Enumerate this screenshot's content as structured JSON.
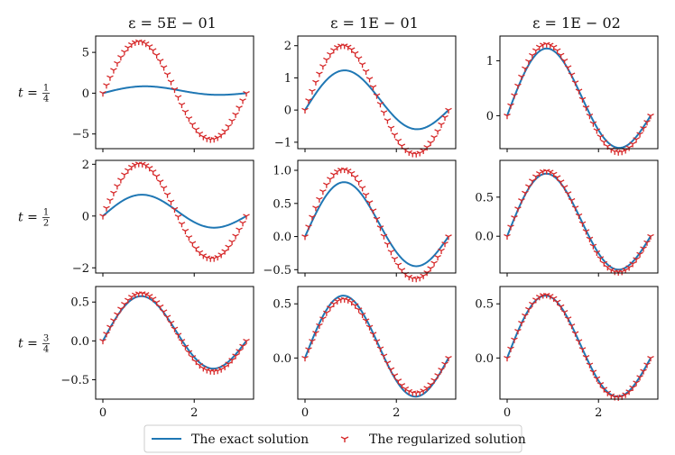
{
  "colors": {
    "exact": "#1f77b4",
    "regularized": "#d62728",
    "axes": "#000000"
  },
  "chart_data": {
    "type": "line",
    "layout": "3x3 grid of subplots",
    "x_domain": [
      0,
      3.14159
    ],
    "x_ticks": [
      0,
      2
    ],
    "column_titles": [
      "ε = 5E − 01",
      "ε = 1E − 01",
      "ε = 1E − 02"
    ],
    "row_labels": [
      "t = 1/4",
      "t = 1/2",
      "t = 3/4"
    ],
    "series_def": {
      "exact": "A·sin(x) + B·sin(2x)",
      "regularized": "A·sin(x) + C·sin(2x), markers at 41 points on [0, π]"
    },
    "legend": {
      "location": "bottom-center",
      "entries": [
        "The exact solution",
        "The regularized solution"
      ]
    },
    "subplots": [
      {
        "row": 0,
        "col": 0,
        "A": 0.453,
        "B": 0.5,
        "C": 6.0,
        "ylim": [
          -6.8,
          7.0
        ],
        "yticks": [
          -5,
          0,
          5
        ],
        "ytick_labels": [
          "−5",
          "0",
          "5"
        ]
      },
      {
        "row": 0,
        "col": 1,
        "A": 0.453,
        "B": 0.9,
        "C": 1.68,
        "ylim": [
          -1.2,
          2.3
        ],
        "yticks": [
          -1,
          0,
          1,
          2
        ],
        "ytick_labels": [
          "−1",
          "0",
          "1",
          "2"
        ]
      },
      {
        "row": 0,
        "col": 2,
        "A": 0.453,
        "B": 0.89,
        "C": 0.97,
        "ylim": [
          -0.6,
          1.45
        ],
        "yticks": [
          0,
          1
        ],
        "ytick_labels": [
          "0",
          "1"
        ]
      },
      {
        "row": 1,
        "col": 0,
        "A": 0.265,
        "B": 0.63,
        "C": 1.83,
        "ylim": [
          -2.2,
          2.15
        ],
        "yticks": [
          -2,
          0,
          2
        ],
        "ytick_labels": [
          "−2",
          "0",
          "2"
        ]
      },
      {
        "row": 1,
        "col": 1,
        "A": 0.265,
        "B": 0.627,
        "C": 0.82,
        "ylim": [
          -0.55,
          1.15
        ],
        "yticks": [
          -0.5,
          0,
          0.5,
          1.0
        ],
        "ytick_labels": [
          "−0.5",
          "0.0",
          "0.5",
          "1.0"
        ]
      },
      {
        "row": 1,
        "col": 2,
        "A": 0.265,
        "B": 0.606,
        "C": 0.64,
        "ylim": [
          -0.47,
          0.97
        ],
        "yticks": [
          0,
          0.5
        ],
        "ytick_labels": [
          "0.0",
          "0.5"
        ]
      },
      {
        "row": 2,
        "col": 0,
        "A": 0.155,
        "B": 0.463,
        "C": 0.5,
        "ylim": [
          -0.75,
          0.7
        ],
        "yticks": [
          -0.5,
          0,
          0.5
        ],
        "ytick_labels": [
          "−0.5",
          "0.0",
          "0.5"
        ]
      },
      {
        "row": 2,
        "col": 1,
        "A": 0.155,
        "B": 0.463,
        "C": 0.43,
        "ylim": [
          -0.38,
          0.66
        ],
        "yticks": [
          0,
          0.5
        ],
        "ytick_labels": [
          "0.0",
          "0.5"
        ]
      },
      {
        "row": 2,
        "col": 2,
        "A": 0.155,
        "B": 0.463,
        "C": 0.47,
        "ylim": [
          -0.38,
          0.66
        ],
        "yticks": [
          0,
          0.5
        ],
        "ytick_labels": [
          "0.0",
          "0.5"
        ]
      }
    ]
  }
}
